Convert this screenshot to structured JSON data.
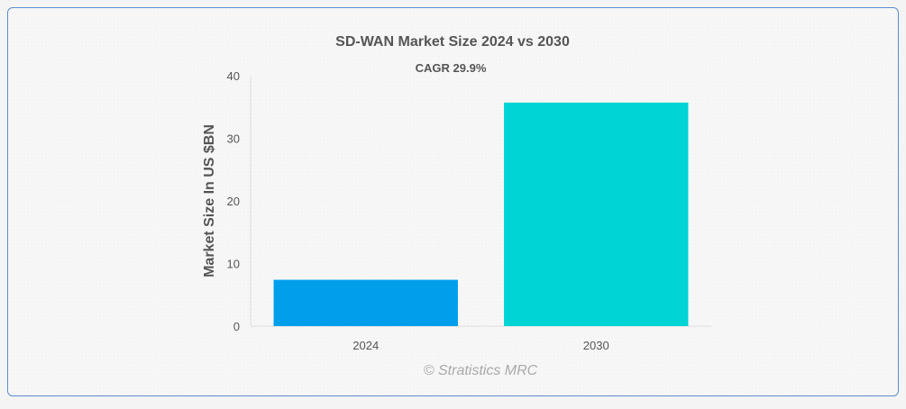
{
  "chart_data": {
    "type": "bar",
    "title": "SD-WAN Market Size 2024 vs 2030",
    "annotation": "CAGR 29.9%",
    "xlabel": "",
    "ylabel": "Market Size In US $BN",
    "categories": [
      "2024",
      "2030"
    ],
    "values": [
      7.4,
      35.7
    ],
    "colors": [
      "#009fec",
      "#00d4d4"
    ],
    "ylim": [
      0,
      40
    ],
    "yticks": [
      "0",
      "10",
      "20",
      "30",
      "40"
    ],
    "grid": false,
    "legend": "none"
  },
  "credit": "© Stratistics MRC"
}
